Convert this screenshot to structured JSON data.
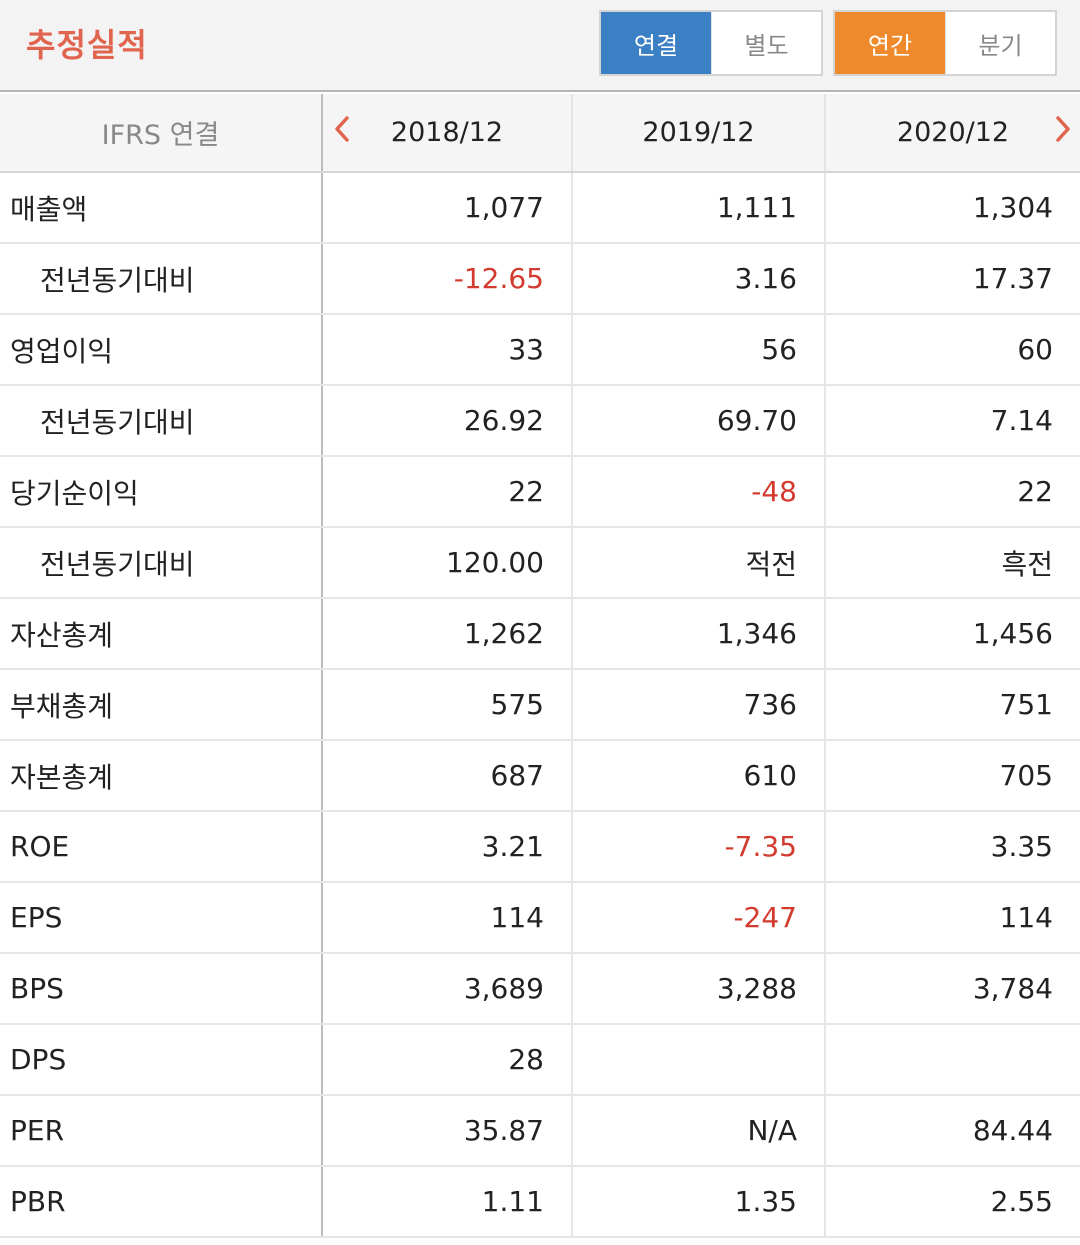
{
  "header": {
    "title": "추정실적",
    "scope_toggle": [
      {
        "label": "연결",
        "active": true
      },
      {
        "label": "별도",
        "active": false
      }
    ],
    "period_toggle": [
      {
        "label": "연간",
        "active": true
      },
      {
        "label": "분기",
        "active": false
      }
    ]
  },
  "table": {
    "label_header": "IFRS 연결",
    "prev_icon": "chevron-left-icon",
    "next_icon": "chevron-right-icon",
    "columns": [
      "2018/12",
      "2019/12",
      "2020/12"
    ],
    "negative_color": "#d23b2e",
    "rows": [
      {
        "label": "매출액",
        "sub": false,
        "values": [
          "1,077",
          "1,111",
          "1,304"
        ],
        "negative": [
          false,
          false,
          false
        ]
      },
      {
        "label": "전년동기대비",
        "sub": true,
        "values": [
          "-12.65",
          "3.16",
          "17.37"
        ],
        "negative": [
          true,
          false,
          false
        ]
      },
      {
        "label": "영업이익",
        "sub": false,
        "values": [
          "33",
          "56",
          "60"
        ],
        "negative": [
          false,
          false,
          false
        ]
      },
      {
        "label": "전년동기대비",
        "sub": true,
        "values": [
          "26.92",
          "69.70",
          "7.14"
        ],
        "negative": [
          false,
          false,
          false
        ]
      },
      {
        "label": "당기순이익",
        "sub": false,
        "values": [
          "22",
          "-48",
          "22"
        ],
        "negative": [
          false,
          true,
          false
        ]
      },
      {
        "label": "전년동기대비",
        "sub": true,
        "values": [
          "120.00",
          "적전",
          "흑전"
        ],
        "negative": [
          false,
          false,
          false
        ]
      },
      {
        "label": "자산총계",
        "sub": false,
        "values": [
          "1,262",
          "1,346",
          "1,456"
        ],
        "negative": [
          false,
          false,
          false
        ]
      },
      {
        "label": "부채총계",
        "sub": false,
        "values": [
          "575",
          "736",
          "751"
        ],
        "negative": [
          false,
          false,
          false
        ]
      },
      {
        "label": "자본총계",
        "sub": false,
        "values": [
          "687",
          "610",
          "705"
        ],
        "negative": [
          false,
          false,
          false
        ]
      },
      {
        "label": "ROE",
        "sub": false,
        "values": [
          "3.21",
          "-7.35",
          "3.35"
        ],
        "negative": [
          false,
          true,
          false
        ]
      },
      {
        "label": "EPS",
        "sub": false,
        "values": [
          "114",
          "-247",
          "114"
        ],
        "negative": [
          false,
          true,
          false
        ]
      },
      {
        "label": "BPS",
        "sub": false,
        "values": [
          "3,689",
          "3,288",
          "3,784"
        ],
        "negative": [
          false,
          false,
          false
        ]
      },
      {
        "label": "DPS",
        "sub": false,
        "values": [
          "28",
          "",
          ""
        ],
        "negative": [
          false,
          false,
          false
        ]
      },
      {
        "label": "PER",
        "sub": false,
        "values": [
          "35.87",
          "N/A",
          "84.44"
        ],
        "negative": [
          false,
          false,
          false
        ]
      },
      {
        "label": "PBR",
        "sub": false,
        "values": [
          "1.11",
          "1.35",
          "2.55"
        ],
        "negative": [
          false,
          false,
          false
        ]
      }
    ]
  }
}
